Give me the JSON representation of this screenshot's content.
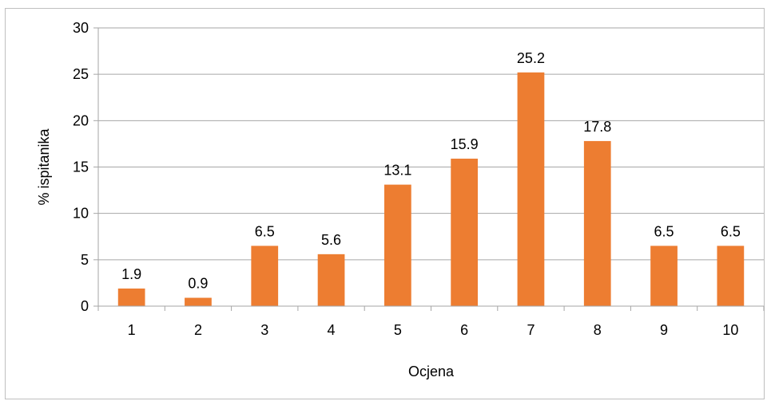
{
  "chart_data": {
    "type": "bar",
    "title": "",
    "xlabel": "Ocjena",
    "ylabel": "% ispitanika",
    "categories": [
      "1",
      "2",
      "3",
      "4",
      "5",
      "6",
      "7",
      "8",
      "9",
      "10"
    ],
    "values": [
      1.9,
      0.9,
      6.5,
      5.6,
      13.1,
      15.9,
      25.2,
      17.8,
      6.5,
      6.5
    ],
    "data_labels": [
      "1.9",
      "0.9",
      "6.5",
      "5.6",
      "13.1",
      "15.9",
      "25.2",
      "17.8",
      "6.5",
      "6.5"
    ],
    "ylim": [
      0,
      30
    ],
    "yticks": [
      0,
      5,
      10,
      15,
      20,
      25,
      30
    ],
    "grid": true,
    "legend": "none",
    "colors": {
      "bar": "#ED7D31",
      "grid": "#A6A6A6",
      "axis": "#A6A6A6",
      "border": "#BFBFBF"
    }
  }
}
